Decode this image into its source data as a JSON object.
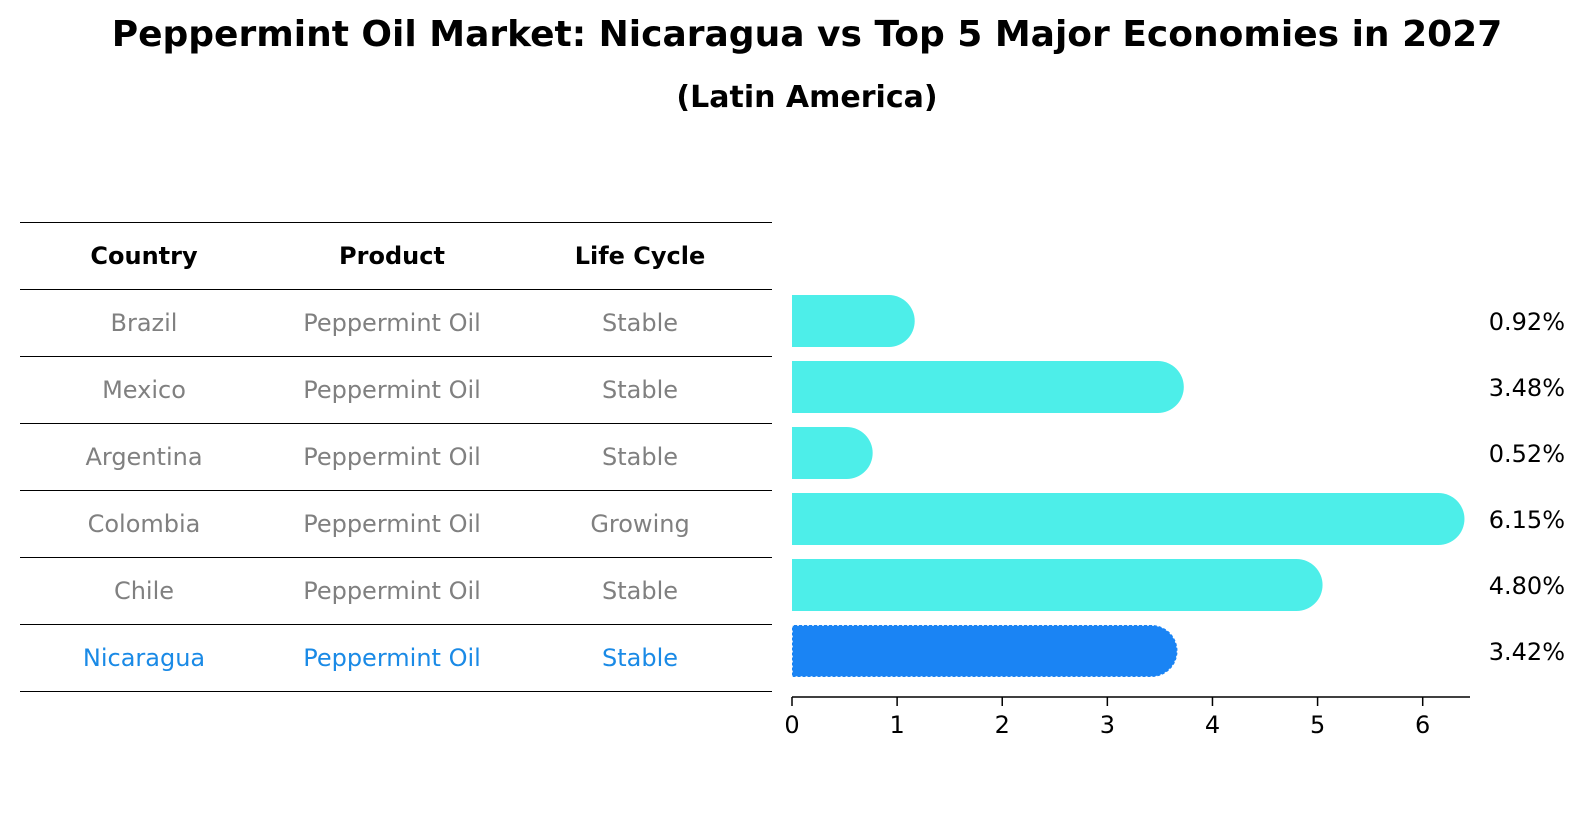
{
  "title": "Peppermint Oil Market: Nicaragua vs Top 5 Major Economies in 2027",
  "subtitle": "(Latin America)",
  "table": {
    "headers": [
      "Country",
      "Product",
      "Life Cycle"
    ],
    "rows": [
      [
        "Brazil",
        "Peppermint Oil",
        "Stable"
      ],
      [
        "Mexico",
        "Peppermint Oil",
        "Stable"
      ],
      [
        "Argentina",
        "Peppermint Oil",
        "Stable"
      ],
      [
        "Colombia",
        "Peppermint Oil",
        "Growing"
      ],
      [
        "Chile",
        "Peppermint Oil",
        "Stable"
      ],
      [
        "Nicaragua",
        "Peppermint Oil",
        "Stable"
      ]
    ],
    "highlight_row": 5
  },
  "colors": {
    "bar": "#4deee9",
    "highlight_bar": "#1a84f4",
    "highlight_text": "#1a8ae6",
    "muted_text": "#808080"
  },
  "chart_data": {
    "type": "bar",
    "orientation": "horizontal",
    "categories": [
      "Brazil",
      "Mexico",
      "Argentina",
      "Colombia",
      "Chile",
      "Nicaragua"
    ],
    "values": [
      0.92,
      3.48,
      0.52,
      6.15,
      4.8,
      3.42
    ],
    "value_labels": [
      "0.92%",
      "3.48%",
      "0.52%",
      "6.15%",
      "4.80%",
      "3.42%"
    ],
    "xticks": [
      "0",
      "1",
      "2",
      "3",
      "4",
      "5",
      "6"
    ],
    "xlim": [
      0,
      6.45
    ],
    "grid": false,
    "highlight_index": 5
  }
}
